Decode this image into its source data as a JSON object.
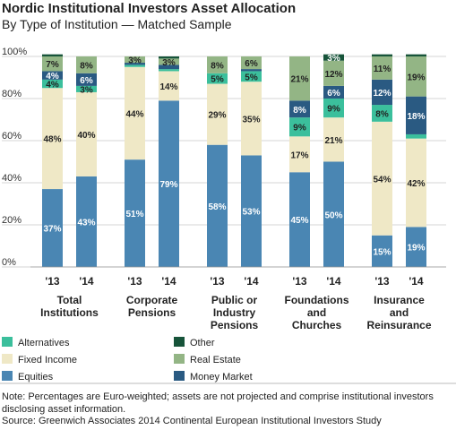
{
  "title": "Nordic Institutional Investors Asset Allocation",
  "subtitle": "By Type of Institution — Matched Sample",
  "chart_data": {
    "type": "bar",
    "stacked": true,
    "y_ticks": [
      "0%",
      "20%",
      "40%",
      "60%",
      "80%",
      "100%"
    ],
    "ylim": [
      0,
      100
    ],
    "grid": true,
    "groups": [
      {
        "label_lines": [
          "Total",
          "Institutions"
        ]
      },
      {
        "label_lines": [
          "Corporate",
          "Pensions"
        ]
      },
      {
        "label_lines": [
          "Public or",
          "Industry",
          "Pensions"
        ]
      },
      {
        "label_lines": [
          "Foundations",
          "and",
          "Churches"
        ]
      },
      {
        "label_lines": [
          "Insurance",
          "and",
          "Reinsurance"
        ]
      }
    ],
    "bars": [
      {
        "group": 0,
        "year": "'13",
        "values": {
          "Equities": 37,
          "Fixed Income": 48,
          "Alternatives": 4,
          "Money Market": 4,
          "Real Estate": 7,
          "Other": 1
        }
      },
      {
        "group": 0,
        "year": "'14",
        "values": {
          "Equities": 43,
          "Fixed Income": 40,
          "Alternatives": 3,
          "Money Market": 6,
          "Real Estate": 8,
          "Other": 0
        }
      },
      {
        "group": 1,
        "year": "'13",
        "values": {
          "Equities": 51,
          "Fixed Income": 44,
          "Alternatives": 1,
          "Money Market": 1,
          "Real Estate": 3,
          "Other": 0
        }
      },
      {
        "group": 1,
        "year": "'14",
        "values": {
          "Equities": 79,
          "Fixed Income": 14,
          "Alternatives": 1,
          "Money Market": 2,
          "Real Estate": 3,
          "Other": 1
        }
      },
      {
        "group": 2,
        "year": "'13",
        "values": {
          "Equities": 58,
          "Fixed Income": 29,
          "Alternatives": 5,
          "Money Market": 0,
          "Real Estate": 8,
          "Other": 0
        }
      },
      {
        "group": 2,
        "year": "'14",
        "values": {
          "Equities": 53,
          "Fixed Income": 35,
          "Alternatives": 5,
          "Money Market": 1,
          "Real Estate": 6,
          "Other": 0
        }
      },
      {
        "group": 3,
        "year": "'13",
        "values": {
          "Equities": 45,
          "Fixed Income": 17,
          "Alternatives": 9,
          "Money Market": 8,
          "Real Estate": 21,
          "Other": 0
        }
      },
      {
        "group": 3,
        "year": "'14",
        "values": {
          "Equities": 50,
          "Fixed Income": 21,
          "Alternatives": 9,
          "Money Market": 6,
          "Real Estate": 12,
          "Other": 3
        }
      },
      {
        "group": 4,
        "year": "'13",
        "values": {
          "Equities": 15,
          "Fixed Income": 54,
          "Alternatives": 8,
          "Money Market": 12,
          "Real Estate": 11,
          "Other": 1
        }
      },
      {
        "group": 4,
        "year": "'14",
        "values": {
          "Equities": 19,
          "Fixed Income": 42,
          "Alternatives": 2,
          "Money Market": 18,
          "Real Estate": 19,
          "Other": 1
        }
      }
    ],
    "labeled": [
      [
        [
          0,
          "Equities"
        ],
        [
          0,
          "Fixed Income"
        ],
        [
          0,
          "Alternatives"
        ],
        [
          0,
          "Money Market"
        ],
        [
          0,
          "Real Estate"
        ]
      ],
      [
        [
          1,
          "Equities"
        ],
        [
          1,
          "Fixed Income"
        ],
        [
          1,
          "Alternatives"
        ],
        [
          1,
          "Money Market"
        ],
        [
          1,
          "Real Estate"
        ]
      ],
      [
        [
          2,
          "Equities"
        ],
        [
          2,
          "Fixed Income"
        ],
        [
          2,
          "Real Estate"
        ]
      ],
      [
        [
          3,
          "Equities"
        ],
        [
          3,
          "Fixed Income"
        ],
        [
          3,
          "Real Estate"
        ]
      ],
      [
        [
          4,
          "Equities"
        ],
        [
          4,
          "Fixed Income"
        ],
        [
          4,
          "Alternatives"
        ],
        [
          4,
          "Real Estate"
        ]
      ],
      [
        [
          5,
          "Equities"
        ],
        [
          5,
          "Fixed Income"
        ],
        [
          5,
          "Alternatives"
        ],
        [
          5,
          "Real Estate"
        ]
      ],
      [
        [
          6,
          "Equities"
        ],
        [
          6,
          "Fixed Income"
        ],
        [
          6,
          "Alternatives"
        ],
        [
          6,
          "Money Market"
        ],
        [
          6,
          "Real Estate"
        ]
      ],
      [
        [
          7,
          "Equities"
        ],
        [
          7,
          "Fixed Income"
        ],
        [
          7,
          "Alternatives"
        ],
        [
          7,
          "Money Market"
        ],
        [
          7,
          "Real Estate"
        ],
        [
          7,
          "Other"
        ]
      ],
      [
        [
          8,
          "Equities"
        ],
        [
          8,
          "Fixed Income"
        ],
        [
          8,
          "Alternatives"
        ],
        [
          8,
          "Money Market"
        ],
        [
          8,
          "Real Estate"
        ]
      ],
      [
        [
          9,
          "Equities"
        ],
        [
          9,
          "Fixed Income"
        ],
        [
          9,
          "Money Market"
        ],
        [
          9,
          "Real Estate"
        ]
      ]
    ],
    "stack_order": [
      "Equities",
      "Fixed Income",
      "Alternatives",
      "Money Market",
      "Real Estate",
      "Other"
    ],
    "colors": {
      "Equities": "#4a86b3",
      "Fixed Income": "#efe8c6",
      "Alternatives": "#3bbf9c",
      "Money Market": "#2a5a82",
      "Real Estate": "#93b585",
      "Other": "#17543a"
    },
    "legend": {
      "placement": "bottom",
      "entries": [
        {
          "name": "Alternatives"
        },
        {
          "name": "Fixed Income"
        },
        {
          "name": "Equities"
        },
        {
          "name": "Other"
        },
        {
          "name": "Real Estate"
        },
        {
          "name": "Money Market"
        }
      ]
    }
  },
  "notes": {
    "note": "Note: Percentages are Euro-weighted; assets are not projected and comprise institutional investors disclosing asset information.",
    "source": "Source: Greenwich Associates 2014 Continental European Institutional Investors Study"
  }
}
